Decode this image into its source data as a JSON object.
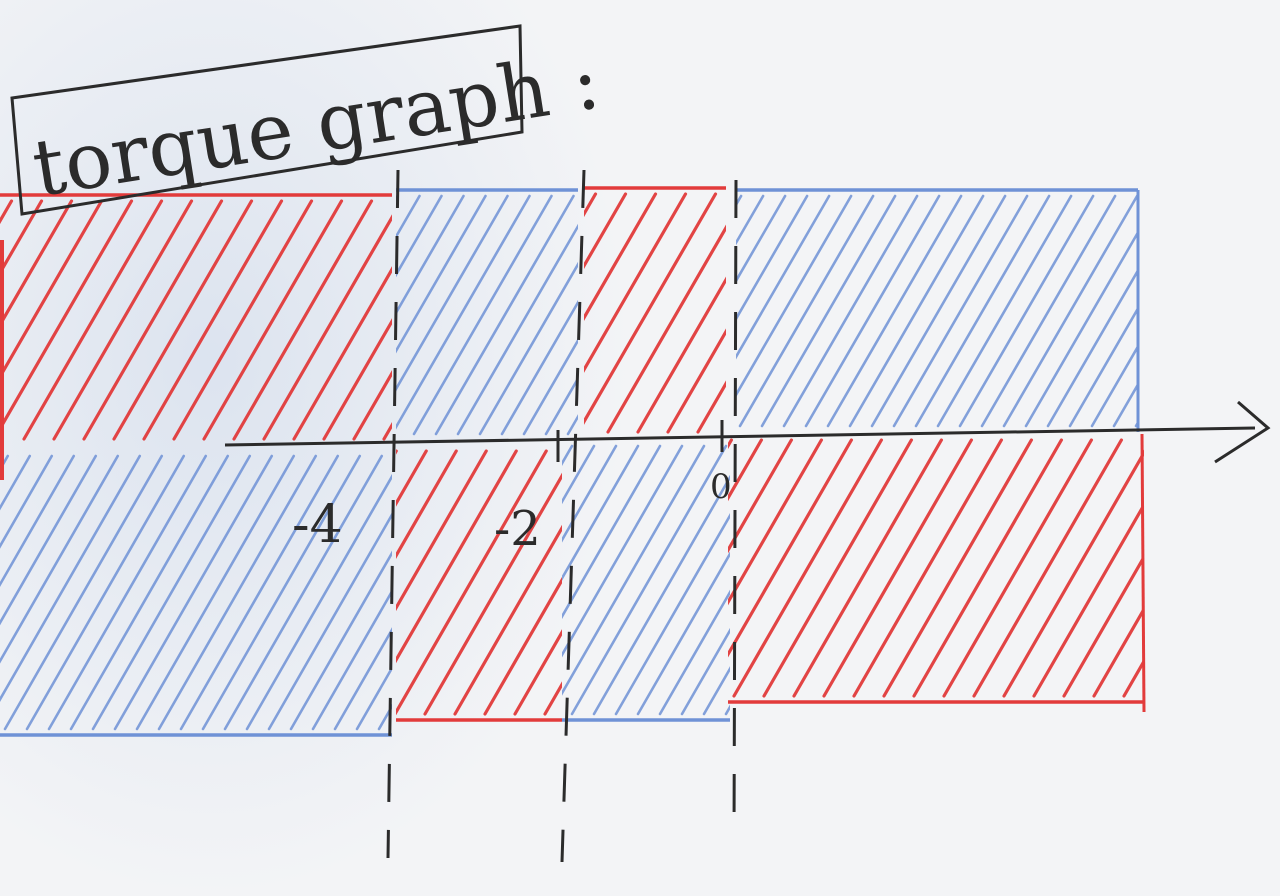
{
  "title": "torque graph :",
  "colors": {
    "red": "#e23b3b",
    "blue": "#6f92d6",
    "ink": "#2b2b2b"
  },
  "tick_labels": [
    "-4",
    "-2",
    "0"
  ],
  "segments": [
    {
      "color": "red",
      "side": "above"
    },
    {
      "color": "blue",
      "side": "below"
    },
    {
      "color": "blue",
      "side": "above"
    },
    {
      "color": "red",
      "side": "below"
    },
    {
      "color": "red",
      "side": "above"
    },
    {
      "color": "blue",
      "side": "below"
    },
    {
      "color": "blue",
      "side": "above"
    },
    {
      "color": "red",
      "side": "below"
    }
  ]
}
